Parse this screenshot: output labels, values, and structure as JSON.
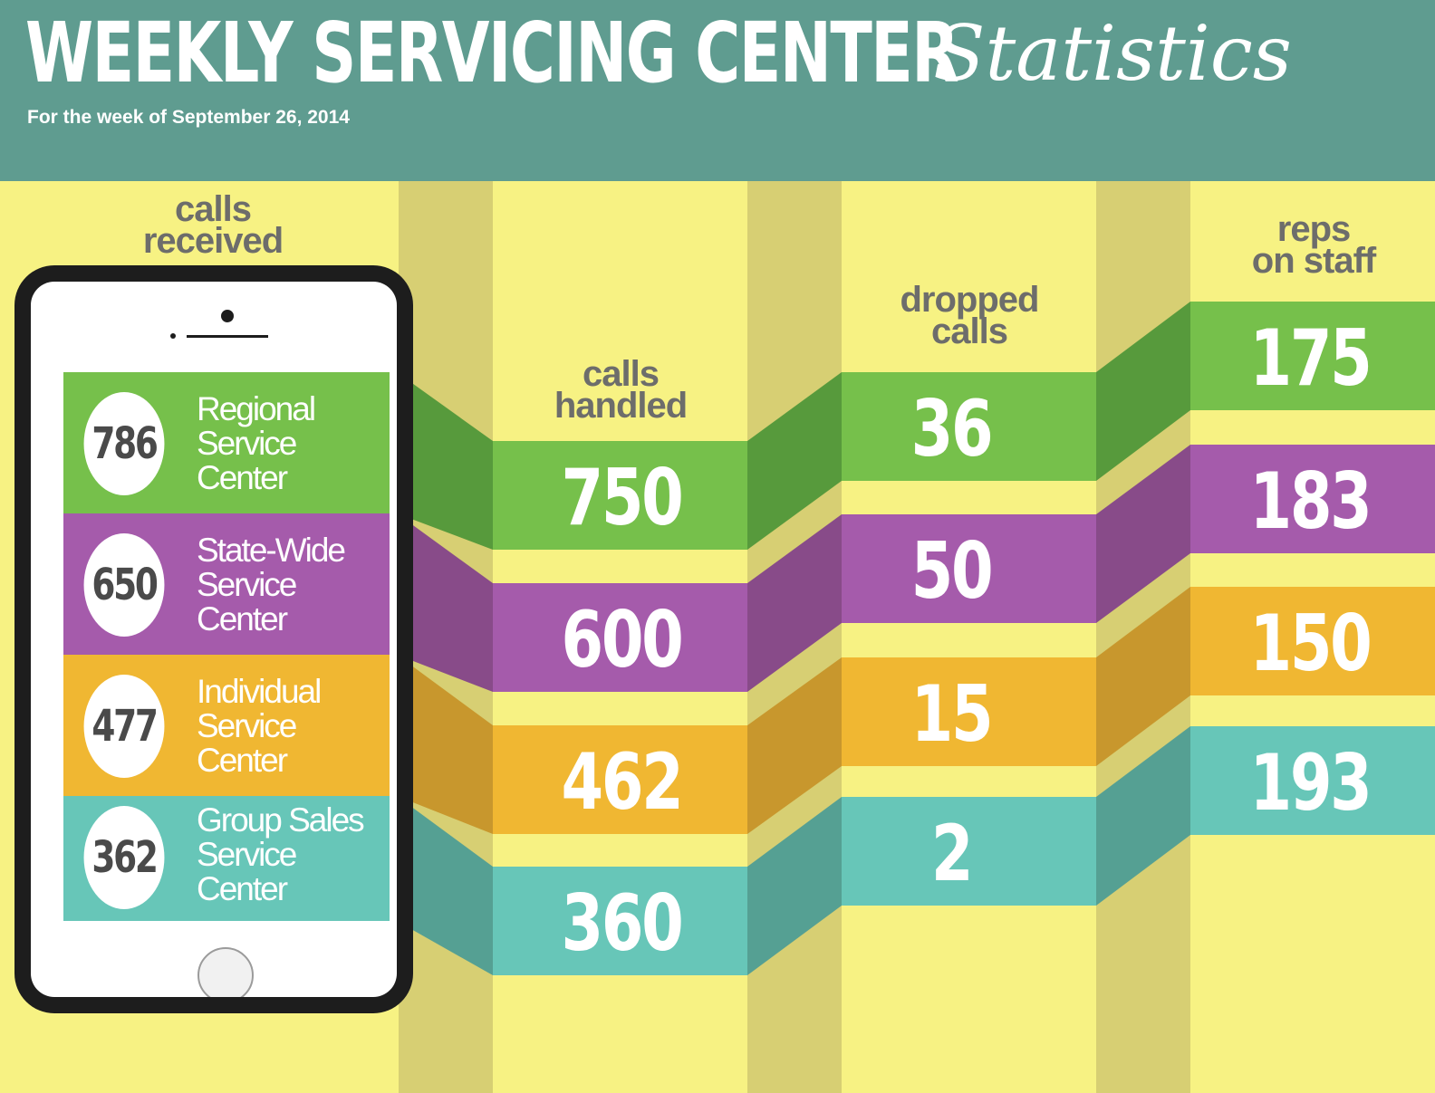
{
  "header": {
    "title": "WEEKLY SERVICING CENTER",
    "title_script": "Statistics",
    "subtitle": "For the week of September 26, 2014"
  },
  "columns": {
    "calls_received": [
      "calls",
      "received"
    ],
    "calls_handled": [
      "calls",
      "handled"
    ],
    "dropped_calls": [
      "dropped",
      "calls"
    ],
    "reps_on_staff": [
      "reps",
      "on staff"
    ]
  },
  "colors": {
    "background": "#f7f283",
    "header": "#5f9c90",
    "regional": "#76c04b",
    "state_wide": "#a55bab",
    "individual": "#f0b732",
    "group_sales": "#67c6b8"
  },
  "centers": [
    {
      "name_lines": [
        "Regional",
        "Service",
        "Center"
      ],
      "calls_received": "786",
      "calls_handled": "750",
      "dropped_calls": "36",
      "reps_on_staff": "175",
      "color": "#76c04b",
      "dark": "#579a3c"
    },
    {
      "name_lines": [
        "State-Wide",
        "Service",
        "Center"
      ],
      "calls_received": "650",
      "calls_handled": "600",
      "dropped_calls": "50",
      "reps_on_staff": "183",
      "color": "#a55bab",
      "dark": "#884b89"
    },
    {
      "name_lines": [
        "Individual",
        "Service",
        "Center"
      ],
      "calls_received": "477",
      "calls_handled": "462",
      "dropped_calls": "15",
      "reps_on_staff": "150",
      "color": "#f0b732",
      "dark": "#c8972d"
    },
    {
      "name_lines": [
        "Group Sales",
        "Service",
        "Center"
      ],
      "calls_received": "362",
      "calls_handled": "360",
      "dropped_calls": "2",
      "reps_on_staff": "193",
      "color": "#67c6b8",
      "dark": "#55a093"
    }
  ]
}
